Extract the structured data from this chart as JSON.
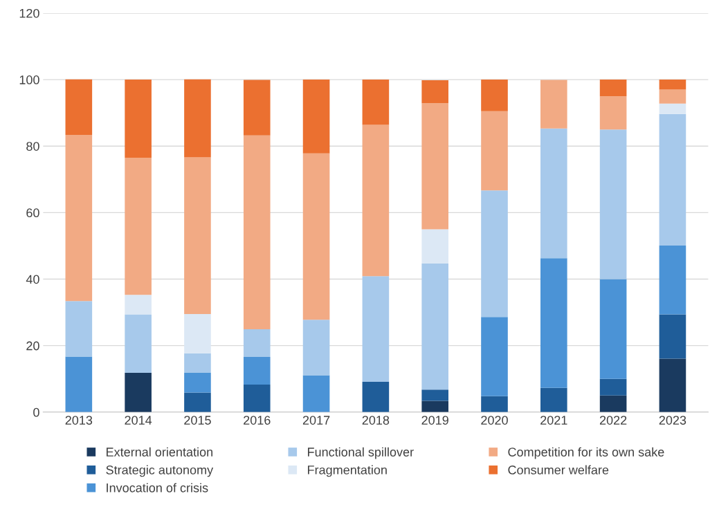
{
  "chart_data": {
    "type": "bar",
    "stacked": true,
    "categories": [
      "2013",
      "2014",
      "2015",
      "2016",
      "2017",
      "2018",
      "2019",
      "2020",
      "2021",
      "2022",
      "2023"
    ],
    "series": [
      {
        "name": "External orientation",
        "color": "#1a3a5f",
        "values": [
          0,
          11.8,
          0,
          0,
          0,
          0,
          3.4,
          0,
          0,
          5,
          16.1
        ]
      },
      {
        "name": "Strategic autonomy",
        "color": "#1f5d99",
        "values": [
          0,
          0,
          5.9,
          8.3,
          0,
          9.1,
          3.4,
          4.8,
          7.3,
          5,
          13.3
        ]
      },
      {
        "name": "Invocation of crisis",
        "color": "#4b93d6",
        "values": [
          16.7,
          0,
          5.9,
          8.3,
          11.1,
          0,
          0,
          23.8,
          39.0,
          30,
          20.7
        ]
      },
      {
        "name": "Functional spillover",
        "color": "#a7c9eb",
        "values": [
          16.7,
          17.6,
          5.9,
          8.3,
          16.7,
          31.8,
          37.9,
          38.1,
          39.0,
          45,
          39.6
        ]
      },
      {
        "name": "Fragmentation",
        "color": "#dce8f5",
        "values": [
          0,
          5.9,
          11.8,
          0,
          0,
          0,
          10.3,
          0,
          0,
          0,
          3.1
        ]
      },
      {
        "name": "Competition for its own sake",
        "color": "#f2aa84",
        "values": [
          50,
          41.2,
          47.1,
          58.3,
          50,
          45.5,
          37.9,
          23.8,
          14.6,
          10,
          4.2
        ]
      },
      {
        "name": "Consumer welfare",
        "color": "#eb7030",
        "values": [
          16.7,
          23.5,
          23.5,
          16.7,
          22.2,
          13.6,
          6.9,
          9.5,
          0,
          5,
          3.0
        ]
      }
    ],
    "ylim": [
      0,
      120
    ],
    "yticks": [
      0,
      20,
      40,
      60,
      80,
      100,
      120
    ],
    "grid": "y",
    "legend": "bottom"
  }
}
